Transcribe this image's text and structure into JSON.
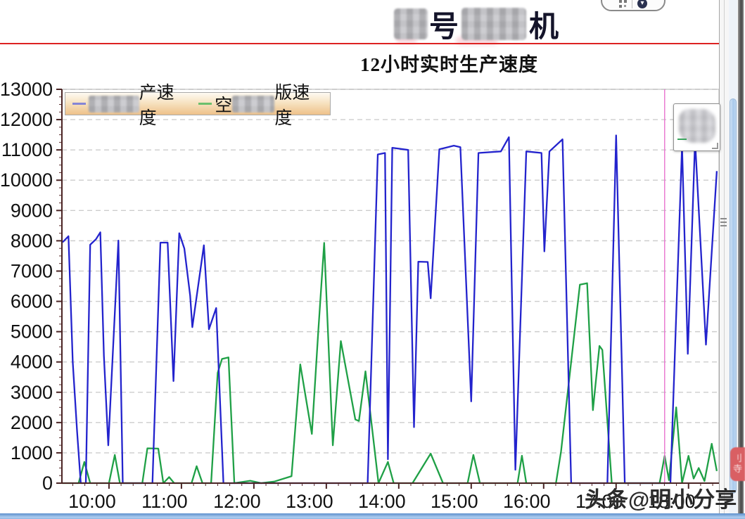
{
  "header": {
    "title_visible_chars": [
      "号",
      "机"
    ],
    "subtitle": "12小时实时生产速度",
    "accent_line_color": "#dd2222"
  },
  "legend": {
    "items": [
      {
        "swatch_color": "#8585d6",
        "censored_prefix": true,
        "text_visible": "产速度"
      },
      {
        "swatch_color": "#6cc06c",
        "text_prefix": "空",
        "censored_middle": true,
        "text_visible": "版速度"
      }
    ]
  },
  "watermark": {
    "text": "头条@明小分享"
  },
  "side_tag": {
    "chars": [
      "刂",
      "寺"
    ],
    "color": "#d95f63"
  },
  "widget": {
    "dropdown_glyph": "▾"
  },
  "colors": {
    "series_blue": "#2323cd",
    "series_green": "#1fa046",
    "cursor_pink": "#e873cf",
    "scrollbar_blue": "#a9c9ec",
    "bottom_bar_blue": "#5c8fcc"
  },
  "chart_data": {
    "type": "line",
    "title": "12小时实时生产速度",
    "xlabel": "",
    "ylabel": "",
    "grid": "horizontal dashed",
    "legend_position": "top-left",
    "cursor_line_hour": 17.67,
    "cursor_color": "#e873cf",
    "x_axis": {
      "range_hours": [
        9.35,
        18.42
      ],
      "tick_hours": [
        10,
        11,
        12,
        13,
        14,
        15,
        16,
        17,
        18
      ],
      "ticks": [
        "10:00",
        "11:00",
        "12:00",
        "13:00",
        "14:00",
        "15:00",
        "16:00",
        "17:00",
        "18:00"
      ],
      "minor_tick_minutes": 10
    },
    "y_axis": {
      "range": [
        0,
        13000
      ],
      "ticks": [
        0,
        1000,
        2000,
        3000,
        4000,
        5000,
        6000,
        7000,
        8000,
        9000,
        10000,
        11000,
        12000,
        13000
      ],
      "minor_tick_step": 250
    },
    "series": [
      {
        "label_visible": "…产速度",
        "color": "#2323cd",
        "points": [
          [
            9.36,
            7950
          ],
          [
            9.44,
            8150
          ],
          [
            9.5,
            4000
          ],
          [
            9.56,
            1700
          ],
          [
            9.61,
            0
          ],
          [
            9.68,
            0
          ],
          [
            9.74,
            7870
          ],
          [
            9.82,
            8050
          ],
          [
            9.88,
            8280
          ],
          [
            9.93,
            4200
          ],
          [
            9.99,
            1250
          ],
          [
            10.13,
            8010
          ],
          [
            10.19,
            0
          ],
          [
            10.6,
            0
          ],
          [
            10.71,
            7940
          ],
          [
            10.81,
            7940
          ],
          [
            10.89,
            3370
          ],
          [
            10.97,
            8250
          ],
          [
            11.04,
            7750
          ],
          [
            11.12,
            6190
          ],
          [
            11.15,
            5150
          ],
          [
            11.31,
            7850
          ],
          [
            11.38,
            5080
          ],
          [
            11.48,
            5780
          ],
          [
            11.58,
            0
          ],
          [
            13.57,
            0
          ],
          [
            13.71,
            10850
          ],
          [
            13.81,
            10900
          ],
          [
            13.85,
            790
          ],
          [
            13.91,
            11070
          ],
          [
            14.13,
            11000
          ],
          [
            14.21,
            1850
          ],
          [
            14.27,
            7310
          ],
          [
            14.4,
            7300
          ],
          [
            14.44,
            6100
          ],
          [
            14.56,
            11020
          ],
          [
            14.76,
            11140
          ],
          [
            14.85,
            11090
          ],
          [
            15.0,
            2700
          ],
          [
            15.1,
            10900
          ],
          [
            15.41,
            10950
          ],
          [
            15.52,
            11420
          ],
          [
            15.61,
            440
          ],
          [
            15.76,
            10950
          ],
          [
            15.97,
            10900
          ],
          [
            16.01,
            7650
          ],
          [
            16.08,
            10950
          ],
          [
            16.26,
            11350
          ],
          [
            16.38,
            0
          ],
          [
            16.88,
            0
          ],
          [
            17.0,
            11480
          ],
          [
            17.12,
            0
          ],
          [
            17.75,
            0
          ],
          [
            17.91,
            11140
          ],
          [
            17.99,
            4270
          ],
          [
            18.09,
            11320
          ],
          [
            18.24,
            4570
          ],
          [
            18.39,
            10300
          ]
        ]
      },
      {
        "label_visible": "空…版速度",
        "color": "#1fa046",
        "points": [
          [
            9.35,
            0
          ],
          [
            9.58,
            0
          ],
          [
            9.66,
            700
          ],
          [
            9.74,
            0
          ],
          [
            10.0,
            0
          ],
          [
            10.08,
            930
          ],
          [
            10.15,
            0
          ],
          [
            10.46,
            0
          ],
          [
            10.53,
            1150
          ],
          [
            10.68,
            1140
          ],
          [
            10.75,
            0
          ],
          [
            10.83,
            200
          ],
          [
            10.9,
            0
          ],
          [
            11.14,
            0
          ],
          [
            11.21,
            560
          ],
          [
            11.29,
            0
          ],
          [
            11.41,
            0
          ],
          [
            11.5,
            3640
          ],
          [
            11.56,
            4100
          ],
          [
            11.65,
            4150
          ],
          [
            11.73,
            0
          ],
          [
            11.95,
            80
          ],
          [
            12.1,
            0
          ],
          [
            12.28,
            50
          ],
          [
            12.52,
            230
          ],
          [
            12.64,
            3920
          ],
          [
            12.8,
            1625
          ],
          [
            12.89,
            5040
          ],
          [
            12.97,
            7930
          ],
          [
            13.09,
            1250
          ],
          [
            13.2,
            4690
          ],
          [
            13.4,
            2100
          ],
          [
            13.45,
            2050
          ],
          [
            13.54,
            3690
          ],
          [
            13.72,
            0
          ],
          [
            13.85,
            700
          ],
          [
            13.93,
            0
          ],
          [
            14.19,
            0
          ],
          [
            14.44,
            975
          ],
          [
            14.61,
            0
          ],
          [
            14.95,
            0
          ],
          [
            15.03,
            930
          ],
          [
            15.12,
            0
          ],
          [
            15.64,
            0
          ],
          [
            15.7,
            905
          ],
          [
            15.76,
            0
          ],
          [
            16.17,
            0
          ],
          [
            16.24,
            1045
          ],
          [
            16.5,
            6550
          ],
          [
            16.6,
            6600
          ],
          [
            16.68,
            2410
          ],
          [
            16.77,
            4530
          ],
          [
            16.81,
            4400
          ],
          [
            16.94,
            0
          ],
          [
            17.6,
            0
          ],
          [
            17.67,
            900
          ],
          [
            17.73,
            100
          ],
          [
            17.83,
            2500
          ],
          [
            17.91,
            0
          ],
          [
            18.0,
            900
          ],
          [
            18.07,
            150
          ],
          [
            18.14,
            500
          ],
          [
            18.22,
            70
          ],
          [
            18.32,
            1300
          ],
          [
            18.39,
            400
          ]
        ]
      }
    ]
  }
}
